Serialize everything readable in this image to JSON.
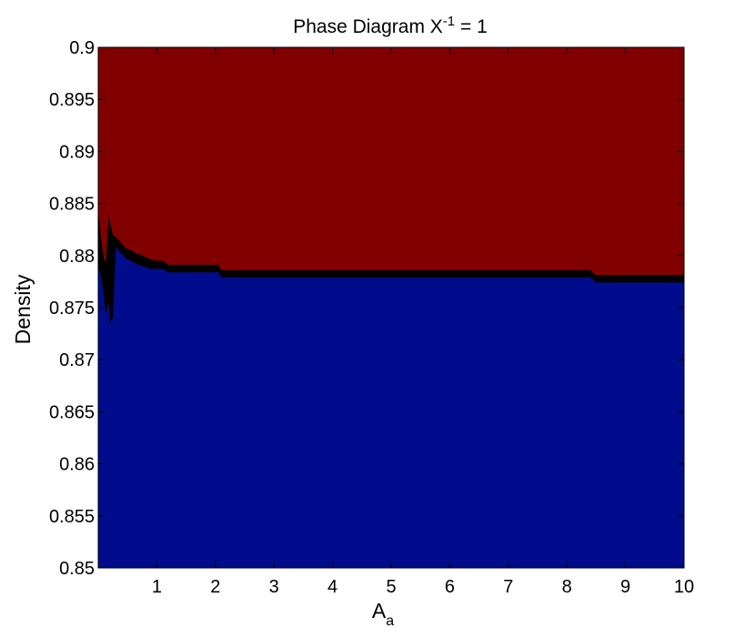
{
  "chart_data": {
    "type": "area",
    "title": "Phase Diagram X",
    "title_superscript": "-1",
    "title_suffix": " = 1",
    "xlabel": "A",
    "xlabel_subscript": "a",
    "ylabel": "Density",
    "xlim": [
      0,
      10
    ],
    "ylim": [
      0.85,
      0.9
    ],
    "x_ticks": [
      1,
      2,
      3,
      4,
      5,
      6,
      7,
      8,
      9,
      10
    ],
    "x_tick_labels": [
      "1",
      "2",
      "3",
      "4",
      "5",
      "6",
      "7",
      "8",
      "9",
      "10"
    ],
    "y_ticks": [
      0.85,
      0.855,
      0.86,
      0.865,
      0.87,
      0.875,
      0.88,
      0.885,
      0.89,
      0.895,
      0.9
    ],
    "y_tick_labels": [
      "0.85",
      "0.855",
      "0.86",
      "0.865",
      "0.87",
      "0.875",
      "0.88",
      "0.885",
      "0.89",
      "0.895",
      "0.9"
    ],
    "grid": false,
    "regions": [
      {
        "region": "upper",
        "color": "#800000"
      },
      {
        "region": "lower",
        "color": "#000c8c"
      }
    ],
    "boundary_color": "#000000",
    "boundary": {
      "x": [
        0.0,
        0.05,
        0.1,
        0.13,
        0.18,
        0.2,
        0.25,
        0.3,
        0.35,
        0.4,
        0.45,
        0.55,
        0.65,
        0.75,
        0.9,
        1.0,
        1.1,
        1.2,
        1.6,
        2.05,
        2.1,
        3.0,
        5.0,
        8.4,
        8.5,
        9.0,
        10.0
      ],
      "upper": [
        0.8845,
        0.8815,
        0.8795,
        0.8795,
        0.884,
        0.8832,
        0.882,
        0.8818,
        0.8815,
        0.8812,
        0.8808,
        0.8805,
        0.8802,
        0.88,
        0.8796,
        0.8795,
        0.8795,
        0.8791,
        0.8791,
        0.8791,
        0.8786,
        0.8786,
        0.8786,
        0.8786,
        0.8781,
        0.8781,
        0.8781
      ],
      "lower": [
        0.879,
        0.878,
        0.876,
        0.8745,
        0.8755,
        0.8735,
        0.874,
        0.8808,
        0.8805,
        0.8802,
        0.8798,
        0.8795,
        0.8792,
        0.879,
        0.8787,
        0.8787,
        0.8787,
        0.8784,
        0.8784,
        0.8784,
        0.8779,
        0.8779,
        0.8779,
        0.8779,
        0.8774,
        0.8774,
        0.8774
      ]
    }
  }
}
